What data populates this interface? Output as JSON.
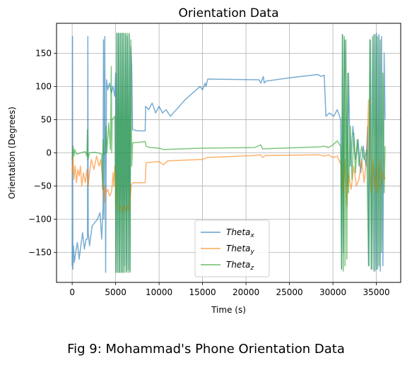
{
  "caption": "Fig 9: Mohammad's Phone Orientation Data",
  "chart_data": {
    "type": "line",
    "title": "Orientation Data",
    "xlabel": "Time (s)",
    "ylabel": "Orientation (Degrees)",
    "xlim": [
      -1800,
      37800
    ],
    "ylim": [
      -195,
      195
    ],
    "x_ticks": [
      0,
      5000,
      10000,
      15000,
      20000,
      25000,
      30000,
      35000
    ],
    "y_ticks": [
      -150,
      -100,
      -50,
      0,
      50,
      100,
      150
    ],
    "x_tick_labels": [
      "0",
      "5000",
      "10000",
      "15000",
      "20000",
      "25000",
      "30000",
      "35000"
    ],
    "y_tick_labels": [
      "−150",
      "−100",
      "−50",
      "0",
      "50",
      "100",
      "150"
    ],
    "grid": true,
    "legend_position": "bottom-center",
    "series": [
      {
        "name": "Theta",
        "subscript": "x",
        "color": "#1f77b4",
        "points": [
          [
            0,
            -170
          ],
          [
            40,
            175
          ],
          [
            80,
            -175
          ],
          [
            150,
            -140
          ],
          [
            250,
            -165
          ],
          [
            400,
            -150
          ],
          [
            600,
            -135
          ],
          [
            800,
            -160
          ],
          [
            1000,
            -140
          ],
          [
            1200,
            -120
          ],
          [
            1400,
            -145
          ],
          [
            1600,
            -130
          ],
          [
            1750,
            -130
          ],
          [
            1800,
            175
          ],
          [
            1850,
            -120
          ],
          [
            2000,
            -140
          ],
          [
            2300,
            -110
          ],
          [
            2600,
            -105
          ],
          [
            2900,
            -100
          ],
          [
            3200,
            -90
          ],
          [
            3400,
            -130
          ],
          [
            3550,
            -80
          ],
          [
            3600,
            170
          ],
          [
            3650,
            -100
          ],
          [
            3750,
            175
          ],
          [
            3850,
            -180
          ],
          [
            3950,
            110
          ],
          [
            4100,
            95
          ],
          [
            4300,
            105
          ],
          [
            4500,
            90
          ],
          [
            4700,
            100
          ],
          [
            4900,
            85
          ],
          [
            5000,
            120
          ],
          [
            5050,
            -180
          ],
          [
            5150,
            180
          ],
          [
            5250,
            -180
          ],
          [
            5350,
            180
          ],
          [
            5450,
            -180
          ],
          [
            5550,
            180
          ],
          [
            5650,
            -180
          ],
          [
            5750,
            180
          ],
          [
            5850,
            -180
          ],
          [
            5950,
            180
          ],
          [
            6050,
            -170
          ],
          [
            6150,
            178
          ],
          [
            6250,
            -178
          ],
          [
            6350,
            175
          ],
          [
            6450,
            -175
          ],
          [
            6550,
            178
          ],
          [
            6650,
            -178
          ],
          [
            6750,
            160
          ],
          [
            6850,
            130
          ],
          [
            6950,
            35
          ],
          [
            7500,
            33
          ],
          [
            8400,
            33
          ],
          [
            8450,
            70
          ],
          [
            8800,
            65
          ],
          [
            9200,
            75
          ],
          [
            9600,
            60
          ],
          [
            10000,
            70
          ],
          [
            10400,
            60
          ],
          [
            10800,
            65
          ],
          [
            11300,
            55
          ],
          [
            11500,
            58
          ],
          [
            13000,
            80
          ],
          [
            14300,
            95
          ],
          [
            14700,
            100
          ],
          [
            15000,
            95
          ],
          [
            15300,
            105
          ],
          [
            15400,
            100
          ],
          [
            15600,
            111
          ],
          [
            21500,
            110
          ],
          [
            21700,
            105
          ],
          [
            22000,
            115
          ],
          [
            22100,
            105
          ],
          [
            22300,
            108
          ],
          [
            25000,
            113
          ],
          [
            28300,
            118
          ],
          [
            28600,
            115
          ],
          [
            29000,
            117
          ],
          [
            29200,
            55
          ],
          [
            29600,
            60
          ],
          [
            30100,
            55
          ],
          [
            30500,
            65
          ],
          [
            30900,
            50
          ],
          [
            31000,
            -175
          ],
          [
            31100,
            178
          ],
          [
            31200,
            -150
          ],
          [
            31350,
            170
          ],
          [
            31500,
            100
          ],
          [
            31650,
            -50
          ],
          [
            31800,
            120
          ],
          [
            32000,
            -20
          ],
          [
            32300,
            40
          ],
          [
            32600,
            -10
          ],
          [
            32900,
            20
          ],
          [
            33200,
            -30
          ],
          [
            33500,
            10
          ],
          [
            33800,
            -20
          ],
          [
            34000,
            40
          ],
          [
            34150,
            -170
          ],
          [
            34300,
            170
          ],
          [
            34500,
            -175
          ],
          [
            34700,
            178
          ],
          [
            34850,
            -178
          ],
          [
            35000,
            180
          ],
          [
            35150,
            -175
          ],
          [
            35300,
            178
          ],
          [
            35450,
            -178
          ],
          [
            35600,
            175
          ],
          [
            35750,
            -170
          ],
          [
            35900,
            150
          ],
          [
            36000,
            50
          ]
        ]
      },
      {
        "name": "Theta",
        "subscript": "y",
        "color": "#ff7f0e",
        "points": [
          [
            0,
            -30
          ],
          [
            100,
            -5
          ],
          [
            200,
            -40
          ],
          [
            350,
            -20
          ],
          [
            500,
            -45
          ],
          [
            650,
            -25
          ],
          [
            800,
            -35
          ],
          [
            950,
            -20
          ],
          [
            1100,
            -50
          ],
          [
            1300,
            -30
          ],
          [
            1500,
            -45
          ],
          [
            1700,
            -25
          ],
          [
            1850,
            -50
          ],
          [
            2000,
            -30
          ],
          [
            2200,
            -10
          ],
          [
            2500,
            -25
          ],
          [
            2800,
            -5
          ],
          [
            3100,
            -20
          ],
          [
            3300,
            -10
          ],
          [
            3500,
            -40
          ],
          [
            3700,
            -75
          ],
          [
            3800,
            -50
          ],
          [
            3900,
            -60
          ],
          [
            4100,
            -55
          ],
          [
            4300,
            -65
          ],
          [
            4500,
            -60
          ],
          [
            4600,
            -50
          ],
          [
            4700,
            -30
          ],
          [
            4800,
            -50
          ],
          [
            4900,
            -20
          ],
          [
            5050,
            -40
          ],
          [
            5200,
            -80
          ],
          [
            5400,
            -85
          ],
          [
            5600,
            -80
          ],
          [
            5800,
            -90
          ],
          [
            6000,
            -78
          ],
          [
            6200,
            -88
          ],
          [
            6400,
            -80
          ],
          [
            6600,
            -85
          ],
          [
            6800,
            -48
          ],
          [
            7000,
            -45
          ],
          [
            8400,
            -45
          ],
          [
            8500,
            -15
          ],
          [
            10000,
            -13
          ],
          [
            10500,
            -18
          ],
          [
            11000,
            -12
          ],
          [
            15000,
            -10
          ],
          [
            15500,
            -7
          ],
          [
            21000,
            -4
          ],
          [
            21700,
            -3
          ],
          [
            21900,
            -7
          ],
          [
            22200,
            -4
          ],
          [
            28500,
            -3
          ],
          [
            29000,
            -5
          ],
          [
            29500,
            -3
          ],
          [
            30000,
            -7
          ],
          [
            30500,
            -5
          ],
          [
            31000,
            -20
          ],
          [
            31200,
            -60
          ],
          [
            31400,
            -10
          ],
          [
            31600,
            -80
          ],
          [
            31800,
            -30
          ],
          [
            32100,
            -55
          ],
          [
            32400,
            -20
          ],
          [
            32700,
            -50
          ],
          [
            33000,
            -40
          ],
          [
            33300,
            -10
          ],
          [
            33600,
            -45
          ],
          [
            33900,
            -5
          ],
          [
            34100,
            80
          ],
          [
            34200,
            -20
          ],
          [
            34400,
            -60
          ],
          [
            34600,
            -10
          ],
          [
            34800,
            -55
          ],
          [
            35000,
            -20
          ],
          [
            35200,
            -60
          ],
          [
            35400,
            -10
          ],
          [
            35600,
            -50
          ],
          [
            35800,
            -30
          ],
          [
            36000,
            -40
          ]
        ]
      },
      {
        "name": "Theta",
        "subscript": "z",
        "color": "#2ca02c",
        "points": [
          [
            0,
            -10
          ],
          [
            100,
            10
          ],
          [
            200,
            -5
          ],
          [
            300,
            5
          ],
          [
            500,
            -2
          ],
          [
            1000,
            0
          ],
          [
            1500,
            2
          ],
          [
            1700,
            -5
          ],
          [
            1750,
            35
          ],
          [
            1800,
            -10
          ],
          [
            2000,
            0
          ],
          [
            2500,
            1
          ],
          [
            3000,
            0
          ],
          [
            3400,
            -2
          ],
          [
            3500,
            -55
          ],
          [
            3550,
            20
          ],
          [
            3600,
            -3
          ],
          [
            3800,
            0
          ],
          [
            3900,
            40
          ],
          [
            4000,
            0
          ],
          [
            4200,
            45
          ],
          [
            4400,
            5
          ],
          [
            4500,
            130
          ],
          [
            4550,
            0
          ],
          [
            4600,
            50
          ],
          [
            4900,
            55
          ],
          [
            5050,
            -180
          ],
          [
            5150,
            180
          ],
          [
            5250,
            -180
          ],
          [
            5350,
            180
          ],
          [
            5450,
            -180
          ],
          [
            5550,
            180
          ],
          [
            5650,
            -180
          ],
          [
            5750,
            180
          ],
          [
            5850,
            -180
          ],
          [
            5950,
            180
          ],
          [
            6050,
            -180
          ],
          [
            6150,
            180
          ],
          [
            6250,
            -180
          ],
          [
            6350,
            180
          ],
          [
            6450,
            -180
          ],
          [
            6550,
            180
          ],
          [
            6650,
            -180
          ],
          [
            6750,
            170
          ],
          [
            6850,
            -20
          ],
          [
            6950,
            15
          ],
          [
            8400,
            17
          ],
          [
            8500,
            10
          ],
          [
            9000,
            8
          ],
          [
            10000,
            7
          ],
          [
            10500,
            5
          ],
          [
            15000,
            7
          ],
          [
            21000,
            8
          ],
          [
            21700,
            12
          ],
          [
            21900,
            6
          ],
          [
            28500,
            9
          ],
          [
            29000,
            10
          ],
          [
            29500,
            8
          ],
          [
            30000,
            12
          ],
          [
            30500,
            18
          ],
          [
            30900,
            10
          ],
          [
            31000,
            -175
          ],
          [
            31100,
            178
          ],
          [
            31200,
            -178
          ],
          [
            31300,
            175
          ],
          [
            31400,
            -170
          ],
          [
            31500,
            170
          ],
          [
            31600,
            -160
          ],
          [
            31700,
            120
          ],
          [
            31800,
            -60
          ],
          [
            32000,
            40
          ],
          [
            32200,
            -40
          ],
          [
            32400,
            30
          ],
          [
            32600,
            -30
          ],
          [
            32800,
            20
          ],
          [
            33000,
            -20
          ],
          [
            33300,
            10
          ],
          [
            33600,
            -10
          ],
          [
            33900,
            5
          ],
          [
            34100,
            -170
          ],
          [
            34250,
            170
          ],
          [
            34400,
            -175
          ],
          [
            34550,
            175
          ],
          [
            34700,
            -178
          ],
          [
            34850,
            178
          ],
          [
            35000,
            -175
          ],
          [
            35150,
            175
          ],
          [
            35300,
            -170
          ],
          [
            35450,
            170
          ],
          [
            35600,
            -150
          ],
          [
            35750,
            120
          ],
          [
            35900,
            -60
          ],
          [
            36000,
            10
          ]
        ]
      }
    ]
  }
}
